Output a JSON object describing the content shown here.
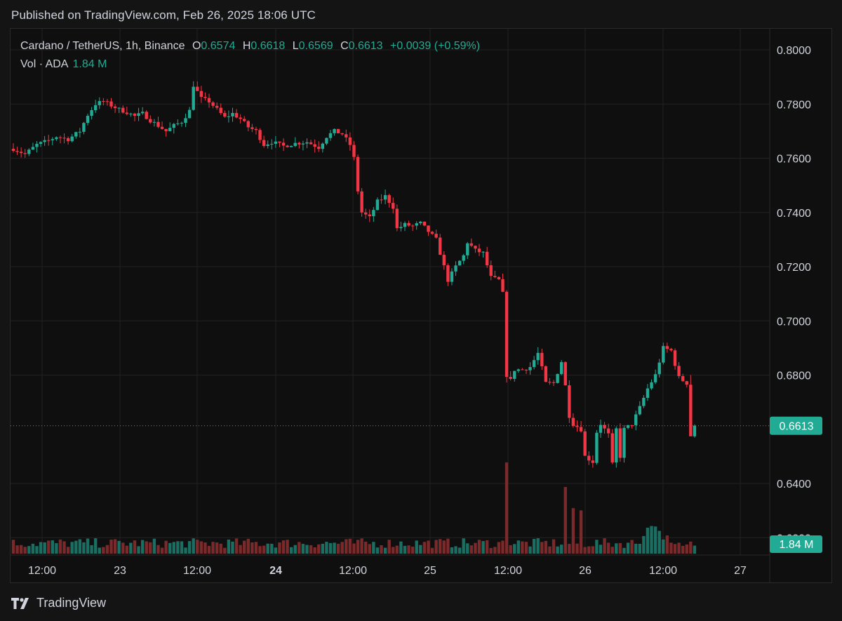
{
  "header": {
    "published": "Published on TradingView.com, Feb 26, 2025 18:06 UTC"
  },
  "legend": {
    "symbol": "Cardano / TetherUS, 1h, Binance",
    "o_label": "O",
    "o_value": "0.6574",
    "h_label": "H",
    "h_value": "0.6618",
    "l_label": "L",
    "l_value": "0.6569",
    "c_label": "C",
    "c_value": "0.6613",
    "change": "+0.0039 (+0.59%)",
    "vol_label": "Vol · ADA",
    "vol_value": "1.84 M"
  },
  "footer": {
    "brand": "TradingView",
    "logo_icon": "tradingview-logo-icon"
  },
  "colors": {
    "up": "#22ab94",
    "down": "#f23645",
    "up_vol": "#1b6f62",
    "down_vol": "#7a2a2a",
    "grid": "#222222",
    "text": "#d1d4dc"
  },
  "chart_data": {
    "type": "candlestick",
    "title": "Cardano / TetherUS, 1h, Binance",
    "y_range": [
      0.63,
      0.8
    ],
    "y_ticks": [
      "0.8000",
      "0.7800",
      "0.7600",
      "0.7400",
      "0.7200",
      "0.7000",
      "0.6800",
      "0.6400",
      "0.6200"
    ],
    "x_ticks": [
      {
        "label": "12:00",
        "bold": false
      },
      {
        "label": "23",
        "bold": false
      },
      {
        "label": "12:00",
        "bold": false
      },
      {
        "label": "24",
        "bold": true
      },
      {
        "label": "12:00",
        "bold": false
      },
      {
        "label": "25",
        "bold": false
      },
      {
        "label": "12:00",
        "bold": false
      },
      {
        "label": "26",
        "bold": false
      },
      {
        "label": "12:00",
        "bold": false
      },
      {
        "label": "27",
        "bold": false
      }
    ],
    "last_price": "0.6613",
    "last_price_value": 0.6613,
    "last_volume": "1.84 M",
    "grid": true,
    "candles": []
  }
}
